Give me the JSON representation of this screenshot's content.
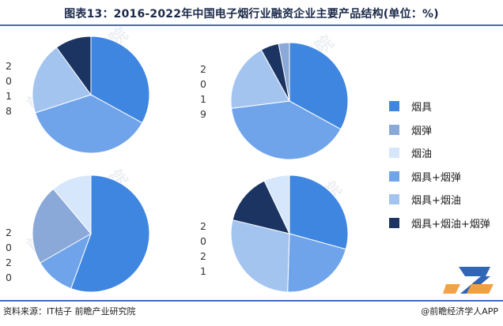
{
  "title": "图表13：2016-2022年中国电子烟行业融资企业主要产品结构(单位：%)",
  "source": "资料来源：IT桔子 前瞻产业研究院",
  "brand": "@前瞻经济学人APP",
  "watermark": "前瞻产业研究院",
  "colors": {
    "烟具": "#3f86e0",
    "烟弹": "#8aa8d8",
    "烟油": "#d6e6fb",
    "烟具+烟弹": "#6fa4ea",
    "烟具+烟油": "#a4c4f0",
    "烟具+烟油+烟弹": "#1b3461"
  },
  "chart_data": [
    {
      "type": "pie",
      "year_label": "2018",
      "slices": [
        {
          "name": "烟具",
          "value": 33
        },
        {
          "name": "烟具+烟弹",
          "value": 37
        },
        {
          "name": "烟具+烟油",
          "value": 20
        },
        {
          "name": "烟具+烟油+烟弹",
          "value": 10
        }
      ]
    },
    {
      "type": "pie",
      "year_label": "2019",
      "slices": [
        {
          "name": "烟具",
          "value": 33
        },
        {
          "name": "烟具+烟弹",
          "value": 40
        },
        {
          "name": "烟具+烟油",
          "value": 19
        },
        {
          "name": "烟具+烟油+烟弹",
          "value": 5
        },
        {
          "name": "烟弹",
          "value": 3
        }
      ]
    },
    {
      "type": "pie",
      "year_label": "2020",
      "slices": [
        {
          "name": "烟具",
          "value": 55
        },
        {
          "name": "烟具+烟弹",
          "value": 11
        },
        {
          "name": "烟弹",
          "value": 22
        },
        {
          "name": "烟油",
          "value": 11
        }
      ]
    },
    {
      "type": "pie",
      "year_label": "2021",
      "slices": [
        {
          "name": "烟具",
          "value": 29
        },
        {
          "name": "烟具+烟弹",
          "value": 21
        },
        {
          "name": "烟具+烟油",
          "value": 28
        },
        {
          "name": "烟具+烟油+烟弹",
          "value": 14
        },
        {
          "name": "烟油",
          "value": 7
        }
      ]
    }
  ],
  "legend": [
    "烟具",
    "烟弹",
    "烟油",
    "烟具+烟弹",
    "烟具+烟油",
    "烟具+烟油+烟弹"
  ]
}
